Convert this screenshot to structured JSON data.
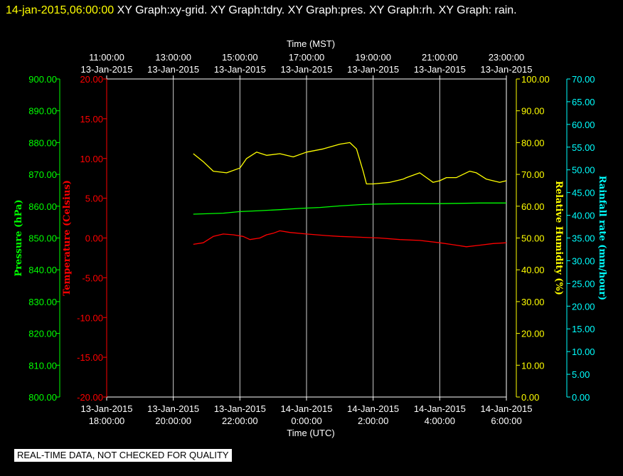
{
  "header": {
    "timestamp": "14-jan-2015,06:00:00",
    "graphs": " XY Graph:xy-grid.  XY Graph:tdry.  XY Graph:pres.  XY Graph:rh.  XY Graph: rain."
  },
  "disclaimer": "REAL-TIME DATA, NOT CHECKED FOR QUALITY",
  "colors": {
    "pressure": "#00ff00",
    "temperature": "#ff0000",
    "humidity": "#ffff00",
    "rain": "#00ffff",
    "grid": "#ffffff",
    "background": "#000000"
  },
  "chart_data": {
    "type": "line",
    "grid": true,
    "x_bottom": {
      "label": "Time (UTC)",
      "ticks": [
        {
          "hour": 18,
          "date": "13-Jan-2015",
          "time": "18:00:00"
        },
        {
          "hour": 20,
          "date": "13-Jan-2015",
          "time": "20:00:00"
        },
        {
          "hour": 22,
          "date": "13-Jan-2015",
          "time": "22:00:00"
        },
        {
          "hour": 24,
          "date": "14-Jan-2015",
          "time": "0:00:00"
        },
        {
          "hour": 26,
          "date": "14-Jan-2015",
          "time": "2:00:00"
        },
        {
          "hour": 28,
          "date": "14-Jan-2015",
          "time": "4:00:00"
        },
        {
          "hour": 30,
          "date": "14-Jan-2015",
          "time": "6:00:00"
        }
      ]
    },
    "x_top": {
      "label": "Time (MST)",
      "ticks": [
        {
          "hour": 18,
          "time": "11:00:00",
          "date": "13-Jan-2015"
        },
        {
          "hour": 20,
          "time": "13:00:00",
          "date": "13-Jan-2015"
        },
        {
          "hour": 22,
          "time": "15:00:00",
          "date": "13-Jan-2015"
        },
        {
          "hour": 24,
          "time": "17:00:00",
          "date": "13-Jan-2015"
        },
        {
          "hour": 26,
          "time": "19:00:00",
          "date": "13-Jan-2015"
        },
        {
          "hour": 28,
          "time": "21:00:00",
          "date": "13-Jan-2015"
        },
        {
          "hour": 30,
          "time": "23:00:00",
          "date": "13-Jan-2015"
        }
      ]
    },
    "axes": {
      "pressure": {
        "label": "Pressure (hPa)",
        "range": [
          800,
          900
        ],
        "ticks": [
          "800.00",
          "810.00",
          "820.00",
          "830.00",
          "840.00",
          "850.00",
          "860.00",
          "870.00",
          "880.00",
          "890.00",
          "900.00"
        ]
      },
      "temperature": {
        "label": "Temperature (Celsius)",
        "range": [
          -20,
          20
        ],
        "ticks": [
          "-20.00",
          "-15.00",
          "-10.00",
          "-5.00",
          "0.00",
          "5.00",
          "10.00",
          "15.00",
          "20.00"
        ]
      },
      "humidity": {
        "label": "Relative Humidity (%)",
        "range": [
          0,
          100
        ],
        "ticks": [
          "0.00",
          "10.00",
          "20.00",
          "30.00",
          "40.00",
          "50.00",
          "60.00",
          "70.00",
          "80.00",
          "90.00",
          "100.00"
        ]
      },
      "rain": {
        "label": "Rainfall rate (mm/hour)",
        "range": [
          0,
          70
        ],
        "ticks": [
          "0.00",
          "5.00",
          "10.00",
          "15.00",
          "20.00",
          "25.00",
          "30.00",
          "35.00",
          "40.00",
          "45.00",
          "50.00",
          "55.00",
          "60.00",
          "65.00",
          "70.00"
        ]
      }
    },
    "series": [
      {
        "axis": "humidity",
        "points": [
          [
            20.6,
            76.5
          ],
          [
            20.9,
            74
          ],
          [
            21.2,
            71
          ],
          [
            21.6,
            70.5
          ],
          [
            22,
            72
          ],
          [
            22.2,
            75
          ],
          [
            22.5,
            77
          ],
          [
            22.8,
            76
          ],
          [
            23.2,
            76.5
          ],
          [
            23.6,
            75.5
          ],
          [
            24,
            77
          ],
          [
            24.5,
            78
          ],
          [
            25,
            79.5
          ],
          [
            25.3,
            80
          ],
          [
            25.5,
            78
          ],
          [
            25.7,
            71
          ],
          [
            25.8,
            67
          ],
          [
            26,
            67
          ],
          [
            26.5,
            67.5
          ],
          [
            26.9,
            68.5
          ],
          [
            27,
            69
          ],
          [
            27.4,
            70.5
          ],
          [
            27.6,
            69
          ],
          [
            27.8,
            67.5
          ],
          [
            28,
            68
          ],
          [
            28.2,
            69
          ],
          [
            28.5,
            69
          ],
          [
            28.9,
            71
          ],
          [
            29.1,
            70.5
          ],
          [
            29.4,
            68.5
          ],
          [
            29.8,
            67.5
          ],
          [
            30,
            68
          ]
        ]
      },
      {
        "axis": "pressure",
        "points": [
          [
            20.6,
            857.5
          ],
          [
            21.5,
            857.8
          ],
          [
            22,
            858.3
          ],
          [
            22.6,
            858.6
          ],
          [
            23.2,
            858.9
          ],
          [
            23.8,
            859.3
          ],
          [
            24.4,
            859.6
          ],
          [
            25,
            860.1
          ],
          [
            25.6,
            860.5
          ],
          [
            26.2,
            860.7
          ],
          [
            27,
            860.8
          ],
          [
            28,
            860.8
          ],
          [
            28.6,
            860.9
          ],
          [
            29.2,
            861
          ],
          [
            29.6,
            861
          ],
          [
            30,
            861
          ]
        ]
      },
      {
        "axis": "temperature",
        "points": [
          [
            20.6,
            -0.8
          ],
          [
            20.9,
            -0.6
          ],
          [
            21.2,
            0.2
          ],
          [
            21.5,
            0.5
          ],
          [
            21.8,
            0.4
          ],
          [
            22.1,
            0.2
          ],
          [
            22.3,
            -0.2
          ],
          [
            22.6,
            0
          ],
          [
            22.8,
            0.4
          ],
          [
            23,
            0.6
          ],
          [
            23.2,
            0.9
          ],
          [
            23.5,
            0.7
          ],
          [
            24,
            0.5
          ],
          [
            24.6,
            0.3
          ],
          [
            25,
            0.2
          ],
          [
            25.6,
            0.1
          ],
          [
            26.2,
            0
          ],
          [
            26.8,
            -0.2
          ],
          [
            27.4,
            -0.3
          ],
          [
            28,
            -0.6
          ],
          [
            28.5,
            -0.9
          ],
          [
            28.8,
            -1.1
          ],
          [
            29.2,
            -0.9
          ],
          [
            29.6,
            -0.7
          ],
          [
            30,
            -0.6
          ]
        ]
      }
    ]
  }
}
